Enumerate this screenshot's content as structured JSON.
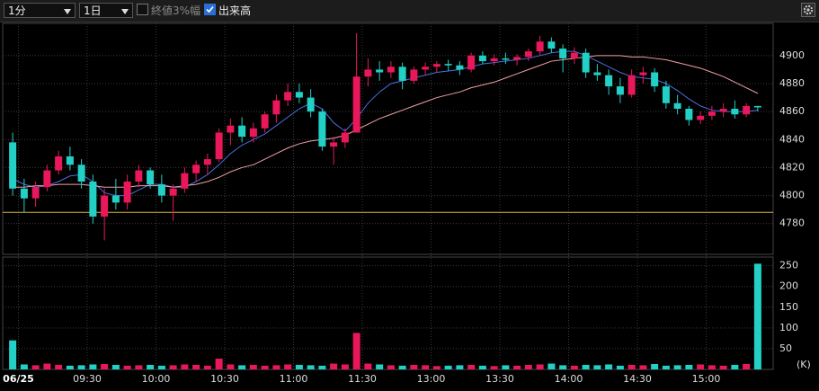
{
  "toolbar": {
    "interval": "1分",
    "period": "1日",
    "range_option": "終値3%幅",
    "volume_option": "出来高"
  },
  "chart_data": {
    "type": "candlestick",
    "categories": [
      "08:55",
      "09:00",
      "09:05",
      "09:10",
      "09:15",
      "09:20",
      "09:25",
      "09:30",
      "09:35",
      "09:40",
      "09:45",
      "09:50",
      "09:55",
      "10:00",
      "10:05",
      "10:10",
      "10:15",
      "10:20",
      "10:25",
      "10:30",
      "10:35",
      "10:40",
      "10:45",
      "10:50",
      "10:55",
      "11:00",
      "11:05",
      "11:10",
      "11:15",
      "11:20",
      "11:25",
      "12:30",
      "12:35",
      "12:40",
      "12:45",
      "12:50",
      "12:55",
      "13:00",
      "13:05",
      "13:10",
      "13:15",
      "13:20",
      "13:25",
      "13:30",
      "13:35",
      "13:40",
      "13:45",
      "13:50",
      "13:55",
      "14:00",
      "14:05",
      "14:10",
      "14:15",
      "14:20",
      "14:25",
      "14:30",
      "14:35",
      "14:40",
      "14:45",
      "14:50",
      "14:55",
      "15:00",
      "15:05",
      "15:10",
      "15:15",
      "15:20"
    ],
    "open": [
      4838,
      4805,
      4798,
      4806,
      4818,
      4828,
      4822,
      4810,
      4785,
      4800,
      4795,
      4810,
      4818,
      4808,
      4800,
      4805,
      4816,
      4822,
      4826,
      4845,
      4850,
      4842,
      4848,
      4858,
      4868,
      4874,
      4870,
      4860,
      4835,
      4838,
      4845,
      4885,
      4890,
      4888,
      4892,
      4882,
      4890,
      4892,
      4894,
      4893,
      4890,
      4900,
      4896,
      4898,
      4897,
      4899,
      4903,
      4910,
      4905,
      4898,
      4902,
      4888,
      4886,
      4878,
      4872,
      4886,
      4888,
      4878,
      4866,
      4862,
      4854,
      4857,
      4860,
      4862,
      4858,
      4864
    ],
    "high": [
      4845,
      4812,
      4810,
      4822,
      4832,
      4835,
      4826,
      4815,
      4805,
      4812,
      4815,
      4822,
      4820,
      4815,
      4808,
      4820,
      4825,
      4830,
      4848,
      4855,
      4856,
      4852,
      4860,
      4872,
      4880,
      4880,
      4876,
      4862,
      4842,
      4848,
      4916,
      4898,
      4896,
      4896,
      4895,
      4892,
      4895,
      4896,
      4897,
      4896,
      4902,
      4903,
      4901,
      4902,
      4901,
      4905,
      4914,
      4913,
      4908,
      4906,
      4905,
      4894,
      4890,
      4884,
      4890,
      4892,
      4891,
      4882,
      4872,
      4864,
      4860,
      4864,
      4866,
      4868,
      4866,
      4864
    ],
    "low": [
      4800,
      4788,
      4792,
      4803,
      4815,
      4818,
      4805,
      4780,
      4768,
      4790,
      4790,
      4806,
      4805,
      4795,
      4782,
      4802,
      4810,
      4815,
      4824,
      4836,
      4838,
      4838,
      4845,
      4852,
      4864,
      4866,
      4856,
      4832,
      4822,
      4834,
      4845,
      4878,
      4882,
      4884,
      4876,
      4880,
      4886,
      4888,
      4889,
      4886,
      4888,
      4894,
      4893,
      4894,
      4893,
      4896,
      4900,
      4902,
      4888,
      4894,
      4884,
      4882,
      4872,
      4866,
      4870,
      4880,
      4874,
      4862,
      4858,
      4850,
      4851,
      4854,
      4856,
      4855,
      4856,
      4860
    ],
    "close": [
      4805,
      4798,
      4806,
      4818,
      4828,
      4822,
      4810,
      4785,
      4800,
      4795,
      4810,
      4818,
      4808,
      4800,
      4805,
      4816,
      4822,
      4826,
      4845,
      4850,
      4842,
      4848,
      4858,
      4868,
      4874,
      4870,
      4860,
      4835,
      4838,
      4845,
      4885,
      4890,
      4888,
      4892,
      4882,
      4890,
      4892,
      4894,
      4893,
      4890,
      4900,
      4896,
      4898,
      4897,
      4899,
      4903,
      4910,
      4905,
      4898,
      4902,
      4888,
      4886,
      4878,
      4872,
      4886,
      4888,
      4878,
      4866,
      4862,
      4854,
      4857,
      4860,
      4862,
      4858,
      4864,
      4863
    ],
    "volume": [
      70,
      12,
      10,
      14,
      11,
      9,
      10,
      12,
      13,
      11,
      9,
      10,
      11,
      9,
      10,
      12,
      11,
      9,
      26,
      12,
      10,
      11,
      9,
      10,
      12,
      11,
      10,
      9,
      14,
      12,
      88,
      14,
      12,
      10,
      9,
      11,
      10,
      8,
      9,
      10,
      11,
      9,
      8,
      10,
      9,
      11,
      12,
      14,
      10,
      9,
      11,
      10,
      12,
      9,
      11,
      10,
      13,
      9,
      10,
      11,
      12,
      10,
      9,
      11,
      13,
      255
    ],
    "lines": [
      {
        "color": "#4a6fe0",
        "values": [
          4812,
          4808,
          4806,
          4807,
          4810,
          4814,
          4815,
          4810,
          4802,
          4800,
          4800,
          4804,
          4808,
          4808,
          4806,
          4806,
          4810,
          4815,
          4822,
          4830,
          4836,
          4840,
          4844,
          4850,
          4856,
          4862,
          4866,
          4862,
          4852,
          4846,
          4855,
          4866,
          4874,
          4880,
          4882,
          4884,
          4886,
          4888,
          4889,
          4890,
          4892,
          4894,
          4895,
          4896,
          4897,
          4898,
          4900,
          4902,
          4903,
          4903,
          4900,
          4896,
          4892,
          4888,
          4885,
          4884,
          4883,
          4880,
          4875,
          4869,
          4864,
          4861,
          4860,
          4860,
          4860,
          4861
        ]
      },
      {
        "color": "#f2a0a8",
        "values": [
          4806,
          4806,
          4807,
          4807,
          4808,
          4808,
          4808,
          4807,
          4806,
          4806,
          4806,
          4807,
          4807,
          4807,
          4806,
          4807,
          4808,
          4810,
          4813,
          4817,
          4820,
          4822,
          4826,
          4830,
          4834,
          4837,
          4839,
          4840,
          4841,
          4843,
          4847,
          4851,
          4855,
          4858,
          4861,
          4864,
          4867,
          4870,
          4872,
          4874,
          4877,
          4879,
          4881,
          4884,
          4887,
          4890,
          4893,
          4896,
          4897,
          4898,
          4899,
          4900,
          4900,
          4900,
          4899,
          4899,
          4898,
          4897,
          4895,
          4893,
          4891,
          4888,
          4885,
          4881,
          4877,
          4873
        ]
      }
    ],
    "hline": {
      "value": 4788,
      "color": "#d9b845"
    },
    "up_color": "#e8185a",
    "down_color": "#22d0c6",
    "ylim": [
      4758,
      4923
    ],
    "yticks": [
      4780,
      4800,
      4820,
      4840,
      4860,
      4880,
      4900
    ],
    "volume_ylim": [
      0,
      271
    ],
    "volume_yticks": [
      50,
      100,
      150,
      200,
      250
    ],
    "volume_unit": "(K)",
    "xticks": [
      {
        "value": "09:00",
        "label": "06/25"
      },
      "09:30",
      "10:00",
      "10:30",
      "11:00",
      {
        "value": "12:30",
        "label": "11:30"
      },
      "13:00",
      "13:30",
      "14:00",
      "14:30",
      "15:00"
    ],
    "grid": true
  }
}
